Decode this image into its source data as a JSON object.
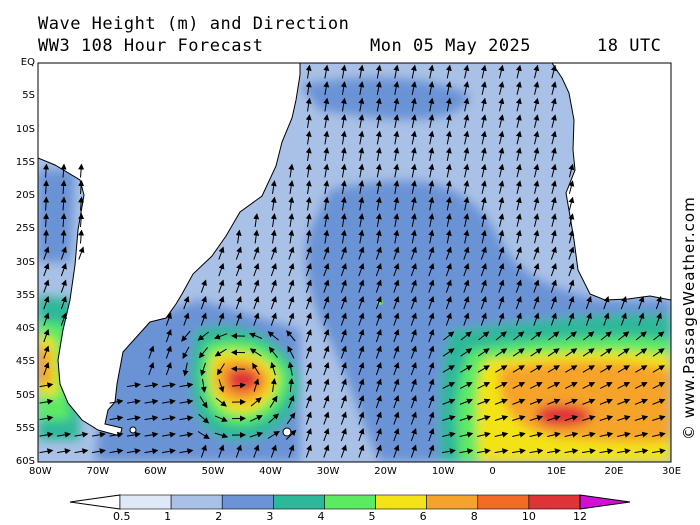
{
  "header": {
    "title": "Wave Height (m) and Direction",
    "model": "WW3 108 Hour Forecast",
    "date": "Mon 05 May 2025",
    "time": "18 UTC"
  },
  "credit": "© www.PassageWeather.com",
  "lat_labels": [
    "EQ",
    "5S",
    "10S",
    "15S",
    "20S",
    "25S",
    "30S",
    "35S",
    "40S",
    "45S",
    "50S",
    "55S",
    "60S"
  ],
  "lon_labels": [
    "80W",
    "70W",
    "60W",
    "50W",
    "40W",
    "30W",
    "20W",
    "10W",
    "0",
    "10E",
    "20E",
    "30E"
  ],
  "colorbar": {
    "labels": [
      "0.5",
      "1",
      "2",
      "3",
      "4",
      "5",
      "6",
      "8",
      "10",
      "12"
    ],
    "colors": [
      "#dfe8f6",
      "#a9c1e6",
      "#6b93d6",
      "#2eb89a",
      "#5dea63",
      "#f3e317",
      "#f6a32b",
      "#f46b25",
      "#e03338",
      "#b5091a",
      "#d20fd4"
    ]
  }
}
